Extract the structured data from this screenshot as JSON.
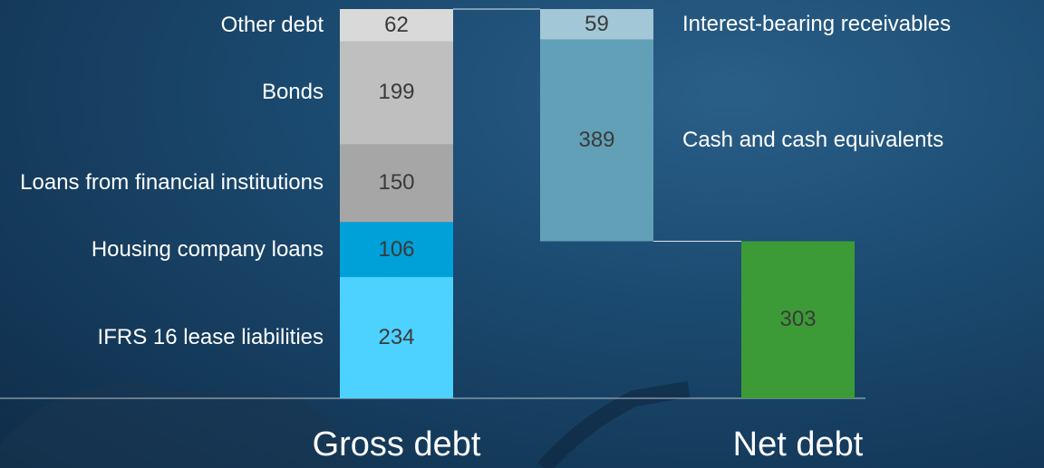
{
  "chart_data": {
    "type": "waterfall",
    "stacks": [
      {
        "category": "Gross debt",
        "segments": [
          {
            "name": "IFRS 16 lease liabilities",
            "value": 234,
            "color": "#4dd2ff"
          },
          {
            "name": "Housing company loans",
            "value": 106,
            "color": "#00a0d8"
          },
          {
            "name": "Loans from financial institutions",
            "value": 150,
            "color": "#a6a6a6"
          },
          {
            "name": "Bonds",
            "value": 199,
            "color": "#bfbfbf"
          },
          {
            "name": "Other debt",
            "value": 62,
            "color": "#d9d9d9"
          }
        ]
      },
      {
        "segments": [
          {
            "name": "Interest-bearing receivables",
            "value": 59,
            "color": "#a2c7d6"
          },
          {
            "name": "Cash and cash equivalents",
            "value": 389,
            "color": "#62a0b8"
          }
        ]
      },
      {
        "category": "Net debt",
        "segments": [
          {
            "value": 303,
            "color": "#3c9b36"
          }
        ]
      }
    ]
  }
}
